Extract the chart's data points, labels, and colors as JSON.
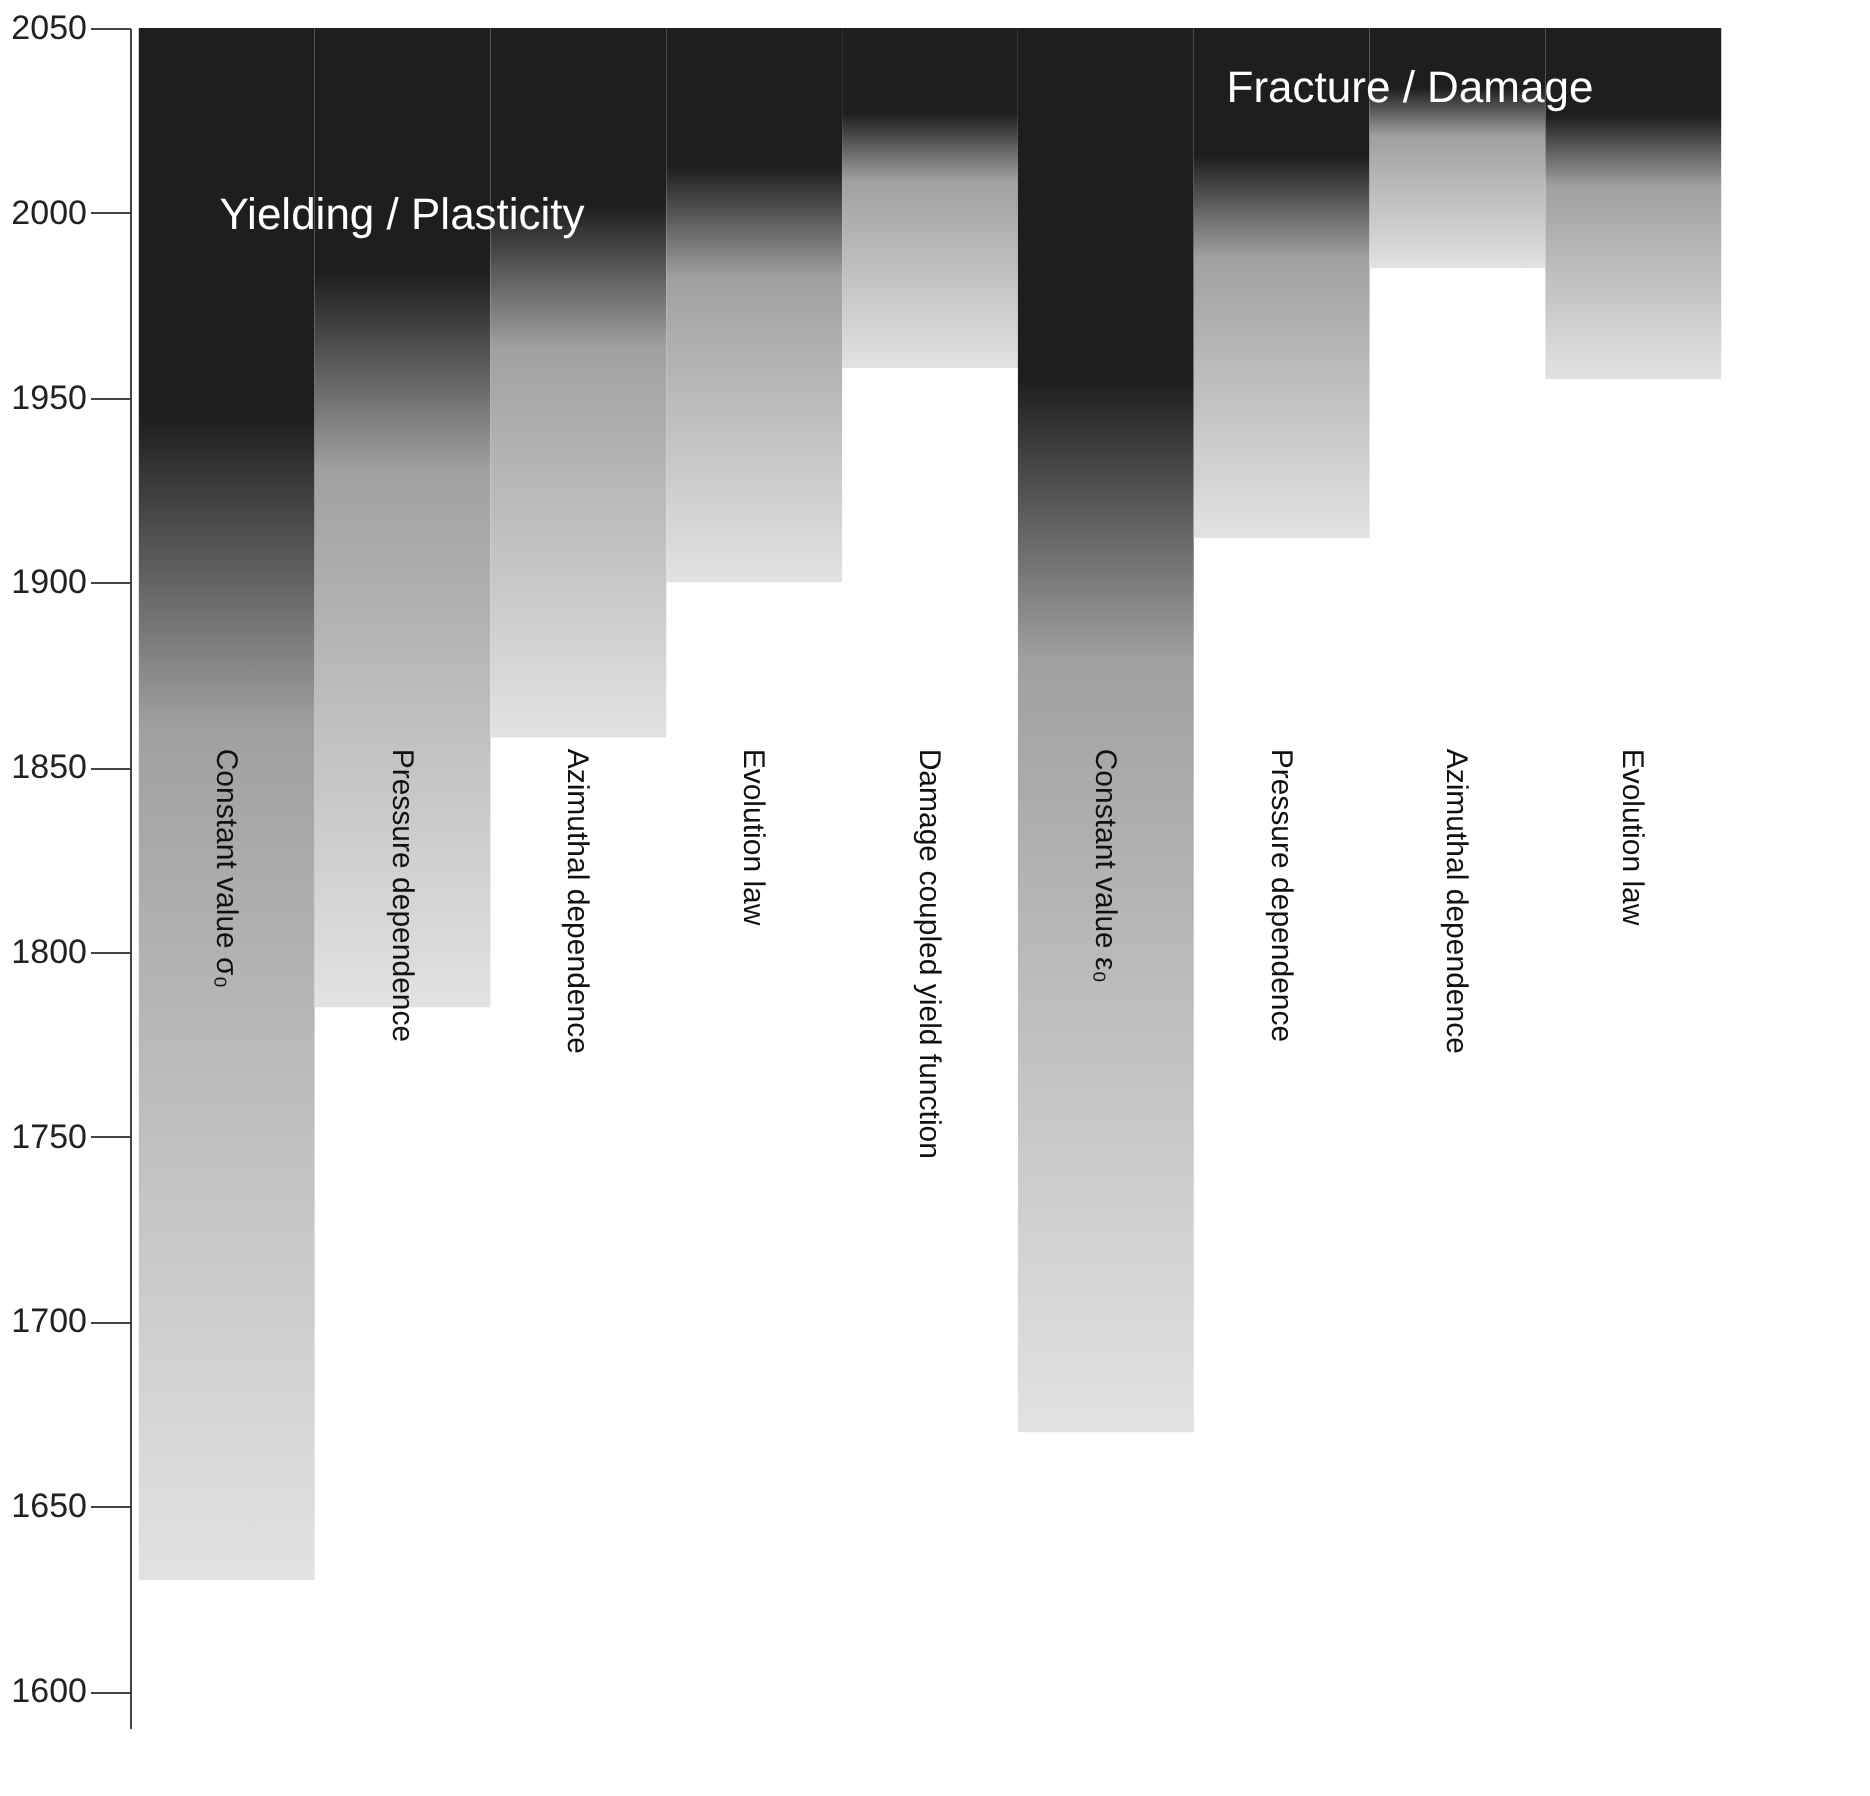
{
  "chart_data": {
    "type": "bar",
    "categories": [
      "Constant value  σ₀",
      "Pressure dependence",
      "Azimuthal dependence",
      "Evolution law",
      "Damage coupled yield function",
      "Constant value  ε₀",
      "Pressure dependence",
      "Azimuthal dependence",
      "Evolution law"
    ],
    "base": [
      2050,
      2050,
      2050,
      2050,
      2050,
      2050,
      2050,
      2050,
      2050
    ],
    "values": [
      -420,
      -265,
      -192,
      -150,
      -92,
      -380,
      -138,
      -65,
      -95
    ],
    "colors": [
      "#1e1e1e",
      "#1e1e1e",
      "#1e1e1e",
      "#1e1e1e",
      "#1e1e1e",
      "#1e1e1e",
      "#1e1e1e",
      "#1e1e1e",
      "#1e1e1e"
    ],
    "annotations": [
      "Yielding / Plasticity",
      "Fracture / Damage"
    ],
    "ylim": [
      1590,
      2050
    ],
    "yticks": [
      1600,
      1650,
      1700,
      1750,
      1800,
      1850,
      1900,
      1950,
      2000,
      2050
    ],
    "grid": false
  }
}
